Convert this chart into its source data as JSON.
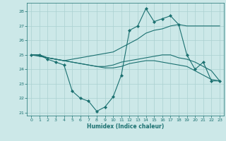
{
  "xlabel": "Humidex (Indice chaleur)",
  "background_color": "#cce8e8",
  "grid_color": "#aad0d0",
  "line_color": "#1a7070",
  "xlim": [
    -0.5,
    23.5
  ],
  "ylim": [
    20.8,
    28.6
  ],
  "yticks": [
    21,
    22,
    23,
    24,
    25,
    26,
    27,
    28
  ],
  "xticks": [
    0,
    1,
    2,
    3,
    4,
    5,
    6,
    7,
    8,
    9,
    10,
    11,
    12,
    13,
    14,
    15,
    16,
    17,
    18,
    19,
    20,
    21,
    22,
    23
  ],
  "series1_x": [
    0,
    1,
    2,
    3,
    4,
    5,
    6,
    7,
    8,
    9,
    10,
    11,
    12,
    13,
    14,
    15,
    16,
    17,
    18,
    19,
    20,
    21,
    22,
    23
  ],
  "series1_y": [
    25,
    25,
    24.7,
    24.5,
    24.3,
    22.5,
    22.0,
    21.8,
    21.1,
    21.4,
    22.1,
    23.6,
    26.7,
    27.0,
    28.2,
    27.3,
    27.5,
    27.7,
    27.1,
    25.0,
    24.0,
    24.5,
    23.2,
    23.2
  ],
  "series2_x": [
    0,
    2,
    3,
    4,
    10,
    11,
    12,
    13,
    14,
    15,
    16,
    17,
    18,
    19,
    20,
    21,
    22,
    23
  ],
  "series2_y": [
    25,
    24.8,
    24.7,
    24.6,
    25.2,
    25.5,
    25.8,
    26.1,
    26.5,
    26.7,
    26.8,
    27.0,
    27.1,
    27.0,
    27.0,
    27.0,
    27.0,
    27.0
  ],
  "series3_x": [
    0,
    1,
    2,
    3,
    4,
    5,
    6,
    7,
    8,
    9,
    10,
    11,
    12,
    13,
    14,
    15,
    16,
    17,
    18,
    19,
    20,
    21,
    22,
    23
  ],
  "series3_y": [
    25,
    25,
    24.8,
    24.7,
    24.6,
    24.5,
    24.4,
    24.3,
    24.2,
    24.2,
    24.3,
    24.5,
    24.6,
    24.7,
    24.8,
    24.9,
    25.0,
    25.0,
    24.8,
    24.7,
    24.5,
    24.2,
    23.9,
    23.2
  ],
  "series4_x": [
    0,
    1,
    2,
    3,
    4,
    5,
    6,
    7,
    8,
    9,
    10,
    11,
    12,
    13,
    14,
    15,
    16,
    17,
    18,
    19,
    20,
    21,
    22,
    23
  ],
  "series4_y": [
    25,
    25,
    24.8,
    24.7,
    24.6,
    24.5,
    24.4,
    24.3,
    24.2,
    24.1,
    24.1,
    24.2,
    24.4,
    24.5,
    24.6,
    24.6,
    24.5,
    24.4,
    24.3,
    24.2,
    23.9,
    23.6,
    23.3,
    23.2
  ]
}
